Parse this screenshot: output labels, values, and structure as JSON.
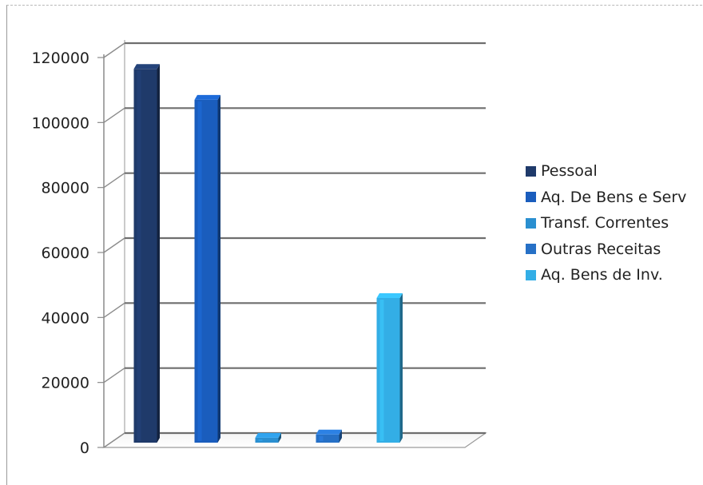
{
  "chart_data": {
    "type": "bar",
    "title": "",
    "xlabel": "",
    "ylabel": "",
    "ylim": [
      0,
      120000
    ],
    "yticks": [
      0,
      20000,
      40000,
      60000,
      80000,
      100000,
      120000
    ],
    "grid": true,
    "legend_position": "right",
    "style": "3d",
    "categories": [
      "Pessoal",
      "Aq. De Bens e Serv",
      "Transf. Correntes",
      "Outras Receitas",
      "Aq. Bens de Inv."
    ],
    "values": [
      116000,
      106500,
      2500,
      3500,
      45500
    ],
    "colors": [
      "#1f3a6a",
      "#1a5dbd",
      "#2a8fd0",
      "#2670c6",
      "#33aee6"
    ]
  }
}
